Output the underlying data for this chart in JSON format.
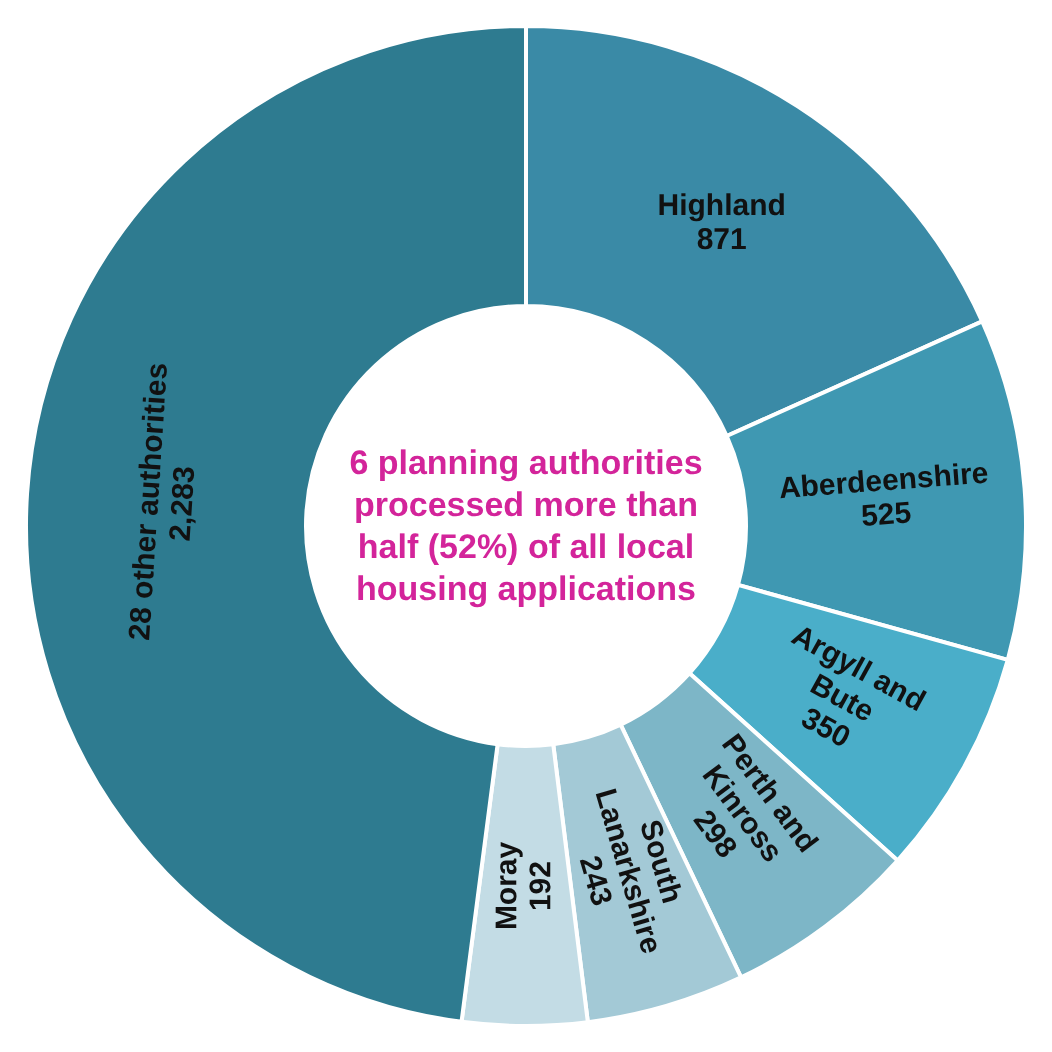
{
  "chart_data": {
    "type": "donut",
    "categories": [
      "Highland",
      "Aberdeenshire",
      "Argyll and Bute",
      "Perth and Kinross",
      "South Lanarkshire",
      "Moray",
      "28 other authorities"
    ],
    "values": [
      871,
      525,
      350,
      298,
      243,
      192,
      2283
    ],
    "value_labels": [
      "871",
      "525",
      "350",
      "298",
      "243",
      "192",
      "2,283"
    ],
    "colors": [
      "#3a8aa6",
      "#3f98b2",
      "#4aaec9",
      "#7db6c7",
      "#a3c9d6",
      "#c3dce5",
      "#2e7b90"
    ],
    "annotations": [
      "6 planning authorities processed more than half (52%) of all local housing applications"
    ],
    "legend": false
  }
}
